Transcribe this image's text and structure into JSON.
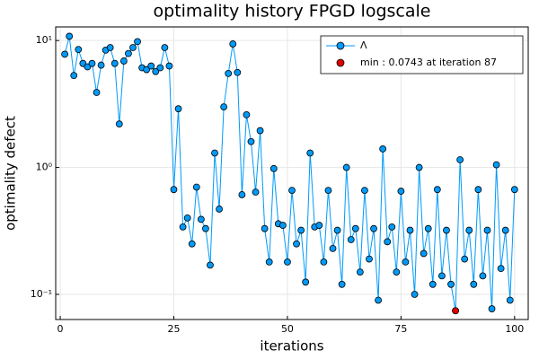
{
  "chart_data": {
    "type": "line",
    "title": "optimality history FPGD logscale",
    "xlabel": "iterations",
    "ylabel": "optimality defect",
    "x": [
      1,
      2,
      3,
      4,
      5,
      6,
      7,
      8,
      9,
      10,
      11,
      12,
      13,
      14,
      15,
      16,
      17,
      18,
      19,
      20,
      21,
      22,
      23,
      24,
      25,
      26,
      27,
      28,
      29,
      30,
      31,
      32,
      33,
      34,
      35,
      36,
      37,
      38,
      39,
      40,
      41,
      42,
      43,
      44,
      45,
      46,
      47,
      48,
      49,
      50,
      51,
      52,
      53,
      54,
      55,
      56,
      57,
      58,
      59,
      60,
      61,
      62,
      63,
      64,
      65,
      66,
      67,
      68,
      69,
      70,
      71,
      72,
      73,
      74,
      75,
      76,
      77,
      78,
      79,
      80,
      81,
      82,
      83,
      84,
      85,
      86,
      87,
      88,
      89,
      90,
      91,
      92,
      93,
      94,
      95,
      96,
      97,
      98,
      99,
      100
    ],
    "series": [
      {
        "name": "Λ",
        "color": "#009af9",
        "marker": true,
        "values": [
          7.8,
          10.8,
          5.3,
          8.5,
          6.6,
          6.2,
          6.6,
          3.9,
          6.4,
          8.4,
          8.8,
          6.6,
          2.2,
          6.9,
          7.9,
          8.8,
          9.8,
          6.1,
          5.9,
          6.3,
          5.7,
          6.1,
          8.8,
          6.3,
          0.67,
          2.9,
          0.34,
          0.4,
          0.25,
          0.7,
          0.39,
          0.33,
          0.17,
          1.3,
          0.47,
          3.0,
          5.5,
          9.4,
          5.6,
          0.61,
          2.6,
          1.6,
          0.64,
          1.95,
          0.33,
          0.18,
          0.98,
          0.36,
          0.35,
          0.18,
          0.66,
          0.25,
          0.32,
          0.125,
          1.3,
          0.34,
          0.35,
          0.18,
          0.66,
          0.23,
          0.32,
          0.12,
          1.0,
          0.27,
          0.33,
          0.15,
          0.66,
          0.19,
          0.33,
          0.09,
          1.4,
          0.26,
          0.34,
          0.15,
          0.65,
          0.18,
          0.32,
          0.1,
          1.0,
          0.21,
          0.33,
          0.12,
          0.67,
          0.14,
          0.32,
          0.12,
          0.0743,
          1.15,
          0.19,
          0.32,
          0.12,
          0.67,
          0.14,
          0.32,
          0.077,
          1.05,
          0.16,
          0.32,
          0.09,
          0.67
        ]
      },
      {
        "name": "min : 0.0743 at iteration 87",
        "color": "#e00000",
        "marker": true,
        "line": false,
        "x": [
          87
        ],
        "values": [
          0.0743
        ]
      }
    ],
    "xlim": [
      -1,
      103
    ],
    "xticks": [
      0,
      25,
      50,
      75,
      100
    ],
    "ylim": [
      0.0634,
      12.8
    ],
    "log_y": true,
    "yticks": [
      {
        "value": 0.1,
        "label": "10⁻¹"
      },
      {
        "value": 1,
        "label": "10⁰"
      },
      {
        "value": 10,
        "label": "10¹"
      }
    ],
    "grid": true,
    "legend": "top-right"
  }
}
